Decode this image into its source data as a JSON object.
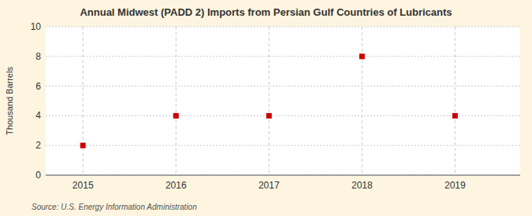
{
  "chart_data": {
    "type": "scatter",
    "title": "Annual Midwest (PADD 2) Imports from Persian Gulf Countries of Lubricants",
    "y_label": "Thousand Barrels",
    "source": "Source: U.S. Energy Information Administration",
    "x": [
      2015,
      2016,
      2017,
      2018,
      2019
    ],
    "values": [
      2,
      4,
      4,
      8,
      4
    ],
    "xlim": [
      2014.6,
      2019.7
    ],
    "ylim": [
      0,
      10
    ],
    "xticks": [
      2015,
      2016,
      2017,
      2018,
      2019
    ],
    "yticks": [
      0,
      2,
      4,
      6,
      8,
      10
    ],
    "color": "#cc0000",
    "marker": "square",
    "grid": true
  }
}
